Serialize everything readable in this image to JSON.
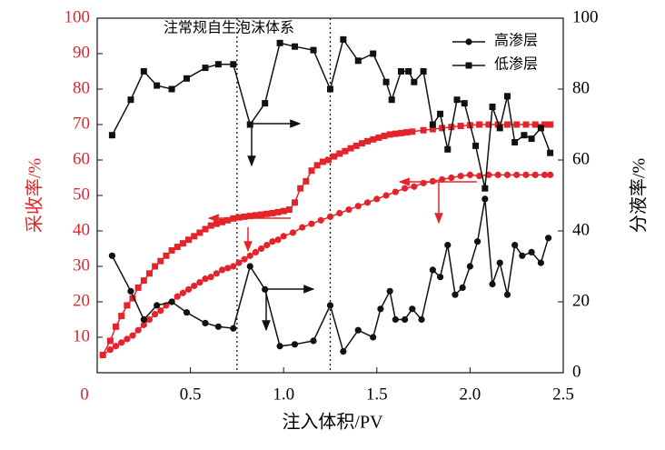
{
  "chart_data": {
    "type": "line",
    "xlabel": "注入体积/PV",
    "ylabel": "采收率/%",
    "y2label": "分液率/%",
    "annotation": "注常规自生泡沫体系",
    "xlim": [
      0,
      2.5
    ],
    "ylim": [
      0,
      100
    ],
    "y2lim": [
      0,
      100
    ],
    "xticks": [
      0.5,
      {
        "value": 1,
        "label": "1.0"
      },
      1.5,
      {
        "value": 2,
        "label": "2.0"
      },
      2.5
    ],
    "yticks": [
      0,
      10,
      20,
      30,
      40,
      50,
      60,
      70,
      80,
      90,
      100
    ],
    "y2ticks": [
      0,
      20,
      40,
      60,
      80,
      100
    ],
    "vlines": [
      0.75,
      1.25
    ],
    "legend": "upper right",
    "series": [
      {
        "color": "#e3242b",
        "marker": "square",
        "x": [
          0.03,
          0.07,
          0.1,
          0.13,
          0.16,
          0.19,
          0.22,
          0.25,
          0.28,
          0.31,
          0.34,
          0.37,
          0.4,
          0.43,
          0.46,
          0.49,
          0.52,
          0.55,
          0.58,
          0.61,
          0.64,
          0.67,
          0.7,
          0.73,
          0.76,
          0.79,
          0.82,
          0.85,
          0.88,
          0.91,
          0.94,
          0.97,
          1.0,
          1.03,
          1.06,
          1.09,
          1.12,
          1.15,
          1.18,
          1.21,
          1.24,
          1.27,
          1.3,
          1.33,
          1.36,
          1.39,
          1.42,
          1.45,
          1.48,
          1.51,
          1.54,
          1.57,
          1.6,
          1.63,
          1.66,
          1.69,
          1.75,
          1.8,
          1.85,
          1.9,
          1.95,
          2.0,
          2.05,
          2.1,
          2.15,
          2.2,
          2.25,
          2.3,
          2.35,
          2.4,
          2.43
        ],
        "values": [
          5,
          9,
          13,
          16,
          19,
          21,
          24,
          26,
          28,
          30,
          31.5,
          33,
          34.5,
          35.5,
          36.5,
          37.5,
          38.5,
          39.5,
          40.5,
          41.5,
          42,
          42.5,
          43,
          43.5,
          43.8,
          44,
          44.2,
          44.4,
          44.6,
          44.8,
          45,
          45.3,
          45.6,
          46,
          48,
          52,
          54,
          57,
          58.5,
          59.5,
          60,
          61,
          61.8,
          62.5,
          63.3,
          64,
          64.7,
          65.3,
          65.8,
          66.3,
          66.8,
          67.2,
          67.4,
          67.6,
          67.8,
          68,
          68.4,
          68.7,
          69,
          69.3,
          69.6,
          69.8,
          70,
          70,
          70,
          70,
          70,
          70,
          70,
          70,
          70
        ]
      },
      {
        "color": "#e3242b",
        "marker": "circle",
        "x": [
          0.03,
          0.07,
          0.1,
          0.13,
          0.16,
          0.19,
          0.22,
          0.25,
          0.28,
          0.31,
          0.34,
          0.37,
          0.4,
          0.43,
          0.46,
          0.49,
          0.52,
          0.55,
          0.58,
          0.61,
          0.64,
          0.67,
          0.7,
          0.73,
          0.76,
          0.79,
          0.82,
          0.85,
          0.88,
          0.91,
          0.94,
          0.97,
          1.0,
          1.05,
          1.1,
          1.15,
          1.2,
          1.25,
          1.3,
          1.35,
          1.4,
          1.45,
          1.5,
          1.55,
          1.6,
          1.65,
          1.7,
          1.75,
          1.8,
          1.85,
          1.9,
          1.95,
          2.0,
          2.05,
          2.1,
          2.15,
          2.2,
          2.25,
          2.3,
          2.35,
          2.4,
          2.43
        ],
        "values": [
          5,
          6.5,
          7.5,
          8.5,
          9.5,
          10.5,
          12,
          13.5,
          15,
          16.5,
          17.5,
          19,
          20,
          21.5,
          22.5,
          23.5,
          24.5,
          25.5,
          26.5,
          27,
          28,
          29,
          29.5,
          30,
          31,
          32,
          33,
          34,
          35,
          36,
          37,
          37.5,
          38.5,
          39.5,
          41,
          42,
          43,
          44,
          45,
          46,
          47,
          48,
          49,
          50,
          51,
          52,
          52.5,
          53.5,
          54,
          54.5,
          55,
          55.5,
          55.8,
          55.5,
          55.8,
          55.8,
          55.8,
          55.8,
          55.8,
          55.8,
          55.8,
          55.8
        ]
      },
      {
        "name": "高渗层",
        "color": "#111111",
        "marker": "circle",
        "axis": "y2",
        "x": [
          0.08,
          0.18,
          0.25,
          0.32,
          0.4,
          0.48,
          0.58,
          0.65,
          0.73,
          0.82,
          0.9,
          0.98,
          1.06,
          1.16,
          1.25,
          1.32,
          1.4,
          1.48,
          1.52,
          1.57,
          1.6,
          1.65,
          1.69,
          1.74,
          1.8,
          1.84,
          1.88,
          1.92,
          1.96,
          2.0,
          2.04,
          2.08,
          2.12,
          2.16,
          2.2,
          2.24,
          2.28,
          2.33,
          2.38,
          2.42
        ],
        "values": [
          33,
          23,
          15,
          19,
          20,
          17,
          14,
          13,
          12.5,
          30,
          23.5,
          7.5,
          8,
          9,
          19,
          6,
          12,
          10,
          18,
          23,
          15,
          15,
          18,
          15,
          29,
          27,
          36,
          22,
          24,
          30,
          37,
          49,
          25,
          31,
          22,
          36,
          33,
          34,
          31,
          38
        ]
      },
      {
        "name": "低渗层",
        "color": "#111111",
        "marker": "square",
        "axis": "y2",
        "x": [
          0.08,
          0.18,
          0.25,
          0.32,
          0.4,
          0.48,
          0.58,
          0.65,
          0.73,
          0.82,
          0.9,
          0.98,
          1.06,
          1.16,
          1.25,
          1.32,
          1.4,
          1.48,
          1.55,
          1.58,
          1.63,
          1.67,
          1.7,
          1.75,
          1.8,
          1.84,
          1.88,
          1.93,
          1.97,
          2.03,
          2.08,
          2.12,
          2.16,
          2.2,
          2.24,
          2.29,
          2.33,
          2.38,
          2.43
        ],
        "values": [
          67,
          77,
          85,
          81,
          80,
          83,
          86,
          87,
          87,
          70,
          76,
          93,
          92,
          91,
          80,
          94,
          88,
          90,
          82,
          77,
          85,
          85,
          82,
          85,
          70,
          73,
          63,
          77,
          76,
          64,
          52,
          75,
          69,
          78,
          65,
          67,
          66,
          69,
          62
        ]
      }
    ]
  }
}
